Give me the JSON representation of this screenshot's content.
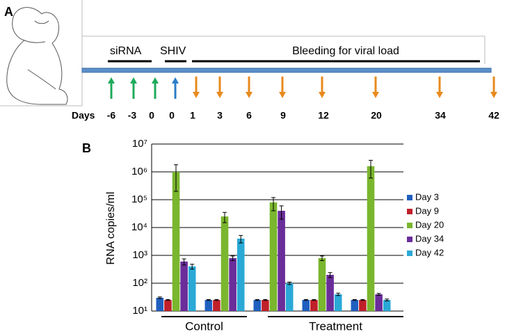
{
  "panel_a": {
    "label": "A",
    "phases": [
      "siRNA",
      "SHIV",
      "Bleeding for viral load"
    ],
    "days_label": "Days",
    "days": [
      "-6",
      "-3",
      "0",
      "0",
      "1",
      "3",
      "6",
      "9",
      "12",
      "20",
      "34",
      "42"
    ]
  },
  "panel_b": {
    "label": "B"
  },
  "chart_data": {
    "type": "bar",
    "log_scale": true,
    "grid": true,
    "legend": "right",
    "y_label": "RNA copies/ml",
    "categories": [
      null,
      null,
      null,
      null,
      null
    ],
    "groups": [
      "Control",
      "Treatment"
    ],
    "ylim": [
      10,
      10000000
    ],
    "yticks": [
      {
        "value": 10,
        "label": "10¹"
      },
      {
        "value": 100,
        "label": "10²"
      },
      {
        "value": 1000,
        "label": "10³"
      },
      {
        "value": 10000,
        "label": "10⁴"
      },
      {
        "value": 100000,
        "label": "10⁵"
      },
      {
        "value": 1000000,
        "label": "10⁶"
      },
      {
        "value": 10000000,
        "label": "10⁷"
      }
    ],
    "series": [
      {
        "name": "Day 3",
        "color": "#1f5fbf",
        "values": [
          30,
          25,
          25,
          25,
          25
        ],
        "errors": [
          2,
          1,
          1,
          1,
          1
        ]
      },
      {
        "name": "Day 9",
        "color": "#c0202a",
        "values": [
          25,
          25,
          25,
          25,
          25
        ],
        "errors": [
          1,
          1,
          1,
          1,
          1
        ]
      },
      {
        "name": "Day 20",
        "color": "#7ab62e",
        "values": [
          1000000,
          25000,
          80000,
          800,
          1600000
        ],
        "errors": [
          800000,
          10000,
          40000,
          150,
          1000000
        ]
      },
      {
        "name": "Day 34",
        "color": "#6a2d9a",
        "values": [
          600,
          800,
          40000,
          200,
          40
        ],
        "errors": [
          150,
          150,
          20000,
          40,
          3
        ]
      },
      {
        "name": "Day 42",
        "color": "#2aa9d6",
        "values": [
          400,
          4000,
          100,
          40,
          25
        ],
        "errors": [
          80,
          1200,
          10,
          4,
          2
        ]
      }
    ]
  }
}
